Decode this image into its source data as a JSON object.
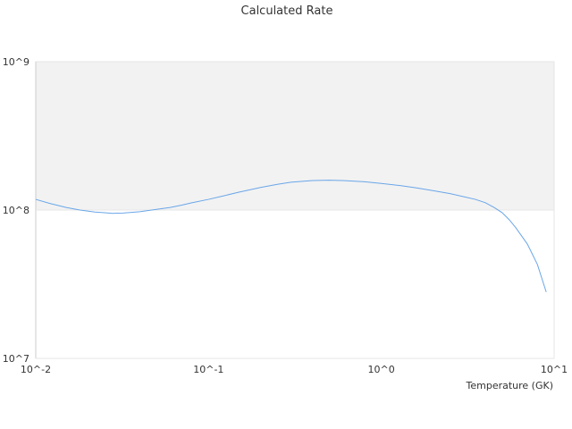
{
  "chart_data": {
    "type": "line",
    "title": "Calculated Rate",
    "xlabel": "Temperature (GK)",
    "ylabel": "",
    "x_scale": "log",
    "y_scale": "log",
    "xlim": [
      0.01,
      10
    ],
    "ylim": [
      10000000,
      1000000000
    ],
    "x_ticks": [
      "10^-2",
      "10^-1",
      "10^0",
      "10^1"
    ],
    "y_ticks": [
      "10^7",
      "10^8",
      "10^9"
    ],
    "grid": false,
    "legend": "none",
    "shaded_band": {
      "from": 100000000,
      "to": 1000000000,
      "color": "#f2f2f2"
    },
    "series": [
      {
        "color": "#6aa6e8",
        "x": [
          0.01,
          0.012,
          0.015,
          0.018,
          0.022,
          0.025,
          0.028,
          0.032,
          0.04,
          0.05,
          0.06,
          0.07,
          0.08,
          0.1,
          0.12,
          0.15,
          0.2,
          0.25,
          0.3,
          0.4,
          0.5,
          0.6,
          0.8,
          1.0,
          1.3,
          1.6,
          2.0,
          2.5,
          3.0,
          3.5,
          4.0,
          4.5,
          5.0,
          5.5,
          6.0,
          7.0,
          8.0,
          9.0
        ],
        "values": [
          118000000,
          111000000,
          104000000,
          100000000,
          97000000,
          96000000,
          95000000,
          95500000,
          97500000,
          101000000,
          104000000,
          108000000,
          112000000,
          118000000,
          124000000,
          132000000,
          142000000,
          149000000,
          154000000,
          158000000,
          159000000,
          158000000,
          155000000,
          151000000,
          146000000,
          141000000,
          135000000,
          129000000,
          123000000,
          118000000,
          112000000,
          104000000,
          96000000,
          86000000,
          76000000,
          59000000,
          43000000,
          28000000
        ]
      }
    ]
  }
}
